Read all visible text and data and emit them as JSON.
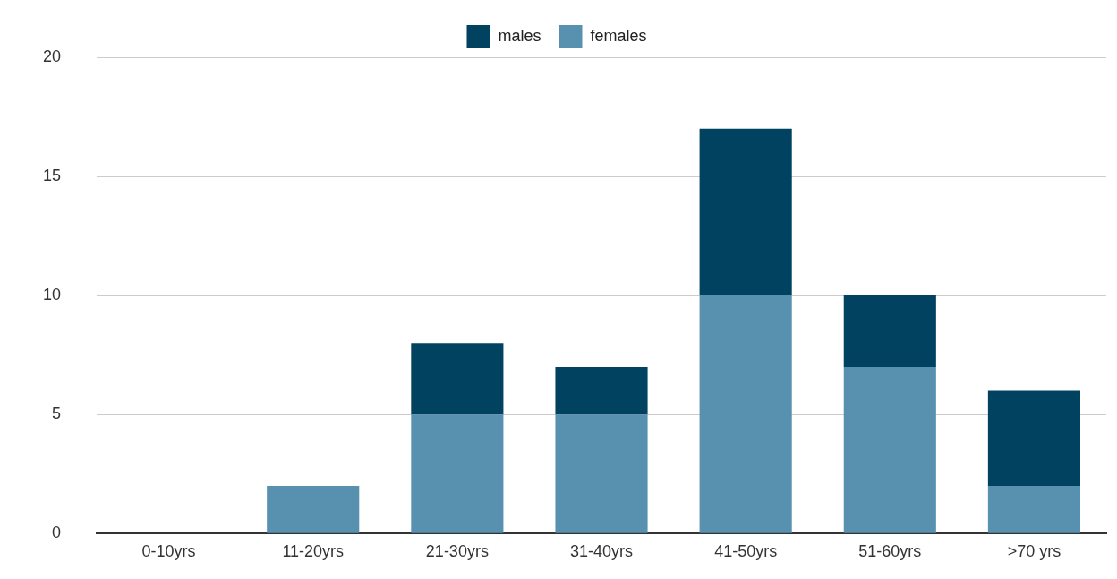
{
  "chart_data": {
    "type": "bar",
    "stacked": true,
    "categories": [
      "0-10yrs",
      "11-20yrs",
      "21-30yrs",
      "31-40yrs",
      "41-50yrs",
      "51-60yrs",
      ">70 yrs"
    ],
    "series": [
      {
        "name": "females",
        "color": "#5891b0",
        "values": [
          0,
          2,
          5,
          5,
          10,
          7,
          2
        ]
      },
      {
        "name": "males",
        "color": "#00425f",
        "values": [
          0,
          0,
          3,
          2,
          7,
          3,
          4
        ]
      }
    ],
    "ylim": [
      0,
      20
    ],
    "yticks": [
      0,
      5,
      10,
      15,
      20
    ],
    "grid": "y",
    "legend": "top"
  }
}
